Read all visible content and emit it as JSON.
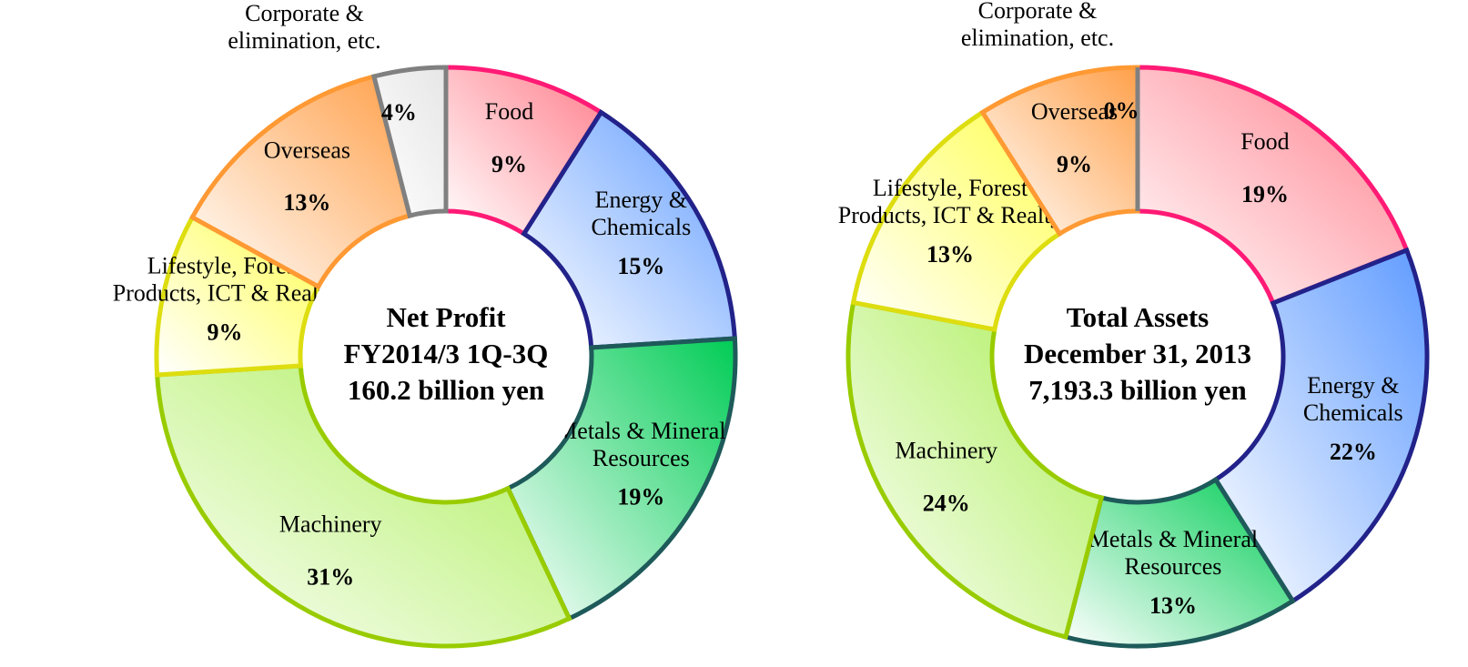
{
  "chart_data": [
    {
      "type": "donut",
      "title_lines": [
        "Net Profit",
        "FY2014/3 1Q-3Q",
        "160.2 billion yen"
      ],
      "categories": [
        "Food",
        "Energy &\nChemicals",
        "Metals & Mineral\nResources",
        "Machinery",
        "Lifestyle, Forest\nProducts, ICT & Realty",
        "Overseas",
        "Corporate &\nelimination, etc."
      ],
      "values": [
        9,
        15,
        19,
        31,
        9,
        13,
        4
      ],
      "value_labels": [
        "9%",
        "15%",
        "19%",
        "31%",
        "9%",
        "13%",
        "4%"
      ],
      "colors": [
        "#ff7f8c",
        "#5f9bff",
        "#00cc55",
        "#aaee55",
        "#ffff55",
        "#ffa04a",
        "#e6e6e6"
      ],
      "edge_colors": [
        "#ff1a75",
        "#22228a",
        "#1e5a5a",
        "#99cc00",
        "#dddd10",
        "#ff9933",
        "#808080"
      ]
    },
    {
      "type": "donut",
      "title_lines": [
        "Total Assets",
        "December 31, 2013",
        "7,193.3 billion yen"
      ],
      "categories": [
        "Food",
        "Energy &\nChemicals",
        "Metals & Mineral\nResources",
        "Machinery",
        "Lifestyle, Forest\nProducts, ICT & Realty",
        "Overseas",
        "Corporate &\nelimination, etc."
      ],
      "values": [
        19,
        22,
        13,
        24,
        13,
        9,
        0
      ],
      "value_labels": [
        "19%",
        "22%",
        "13%",
        "24%",
        "13%",
        "9%",
        "0%"
      ],
      "colors": [
        "#ff7f8c",
        "#5f9bff",
        "#00cc55",
        "#aaee55",
        "#ffff55",
        "#ffa04a",
        "#e6e6e6"
      ],
      "edge_colors": [
        "#ff1a75",
        "#22228a",
        "#1e5a5a",
        "#99cc00",
        "#dddd10",
        "#ff9933",
        "#808080"
      ]
    }
  ]
}
